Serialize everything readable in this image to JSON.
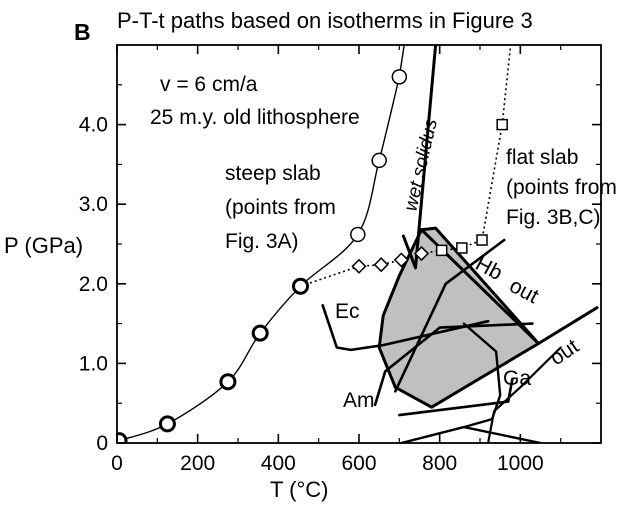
{
  "chart_data": {
    "type": "line",
    "panel_label": "B",
    "title": "P-T-t paths based on isotherms in Figure 3",
    "xlabel": "T (°C)",
    "ylabel": "P (GPa)",
    "xlim": [
      0,
      1200
    ],
    "ylim": [
      0,
      5.0
    ],
    "x_ticks": [
      {
        "value": 0,
        "label": "0"
      },
      {
        "value": 200,
        "label": "200"
      },
      {
        "value": 400,
        "label": "400"
      },
      {
        "value": 600,
        "label": "600"
      },
      {
        "value": 800,
        "label": "800"
      },
      {
        "value": 1000,
        "label": "1000"
      }
    ],
    "y_ticks": [
      {
        "value": 0,
        "label": "0"
      },
      {
        "value": 1.0,
        "label": "1.0"
      },
      {
        "value": 2.0,
        "label": "2.0"
      },
      {
        "value": 3.0,
        "label": "3.0"
      },
      {
        "value": 4.0,
        "label": "4.0"
      }
    ],
    "grid": false,
    "series": [
      {
        "name": "steep slab (points from Fig. 3A)",
        "marker": "circle",
        "line": "solid",
        "points": [
          [
            5,
            0.03
          ],
          [
            125,
            0.24
          ],
          [
            275,
            0.77
          ],
          [
            355,
            1.38
          ],
          [
            455,
            1.97
          ],
          [
            597,
            2.62
          ],
          [
            650,
            3.55
          ],
          [
            700,
            4.6
          ]
        ]
      },
      {
        "name": "flat slab (points from Fig. 3B,C)",
        "marker_group_1": "diamond",
        "marker_group_2": "square",
        "line": "dotted",
        "points": [
          [
            455,
            1.97
          ],
          [
            600,
            2.22
          ],
          [
            655,
            2.24
          ],
          [
            705,
            2.3
          ],
          [
            755,
            2.38
          ],
          [
            805,
            2.42
          ],
          [
            855,
            2.45
          ],
          [
            905,
            2.55
          ],
          [
            955,
            4.0
          ]
        ],
        "curve_to": [
          980,
          5.2
        ]
      }
    ],
    "boundaries": {
      "wet_solidus": [
        [
          710,
          2.6
        ],
        [
          740,
          2.2
        ],
        [
          790,
          5.0
        ]
      ],
      "shaded_field": [
        [
          755,
          2.68
        ],
        [
          700,
          2.1
        ],
        [
          660,
          1.6
        ],
        [
          650,
          1.2
        ],
        [
          690,
          0.7
        ],
        [
          780,
          0.45
        ],
        [
          1045,
          1.25
        ],
        [
          790,
          2.7
        ]
      ],
      "hb_out": [
        [
          755,
          2.68
        ],
        [
          1045,
          1.25
        ]
      ],
      "ga_out": [
        [
          1045,
          1.25
        ],
        [
          1190,
          1.7
        ]
      ],
      "ga_out_lower": [
        [
          920,
          0
        ],
        [
          935,
          0.4
        ],
        [
          1000,
          0.7
        ],
        [
          1100,
          1.2
        ]
      ],
      "ec_boundary_1": [
        [
          510,
          1.73
        ],
        [
          545,
          1.2
        ],
        [
          580,
          1.17
        ],
        [
          660,
          1.23
        ],
        [
          920,
          1.53
        ]
      ],
      "ec_boundary_2": [
        [
          690,
          0.65
        ],
        [
          815,
          2.0
        ],
        [
          960,
          2.55
        ]
      ],
      "am_boundary_1": [
        [
          640,
          0.48
        ],
        [
          665,
          0.9
        ],
        [
          800,
          1.45
        ],
        [
          1030,
          1.5
        ]
      ],
      "am_boundary_2": [
        [
          700,
          0.35
        ],
        [
          970,
          0.52
        ],
        [
          980,
          0.8
        ]
      ],
      "lower_lines": [
        [
          705,
          0
        ],
        [
          860,
          0.2
        ],
        [
          1050,
          0
        ]
      ],
      "inner_right": [
        [
          860,
          1.5
        ],
        [
          940,
          1.15
        ],
        [
          950,
          0.6
        ],
        [
          930,
          0.3
        ],
        [
          860,
          0.2
        ]
      ]
    },
    "annotations": [
      {
        "text": "v = 6 cm/a"
      },
      {
        "text": "25 m.y. old lithosphere"
      },
      {
        "text": "steep slab"
      },
      {
        "text": "(points from"
      },
      {
        "text": "Fig. 3A)"
      },
      {
        "text": "flat slab"
      },
      {
        "text": "(points from"
      },
      {
        "text": "Fig. 3B,C)"
      },
      {
        "text": "wet solidus"
      },
      {
        "text": "Hb"
      },
      {
        "text": "out"
      },
      {
        "text": "out"
      },
      {
        "text": "Ec"
      },
      {
        "text": "Am"
      },
      {
        "text": "Ga"
      }
    ]
  }
}
